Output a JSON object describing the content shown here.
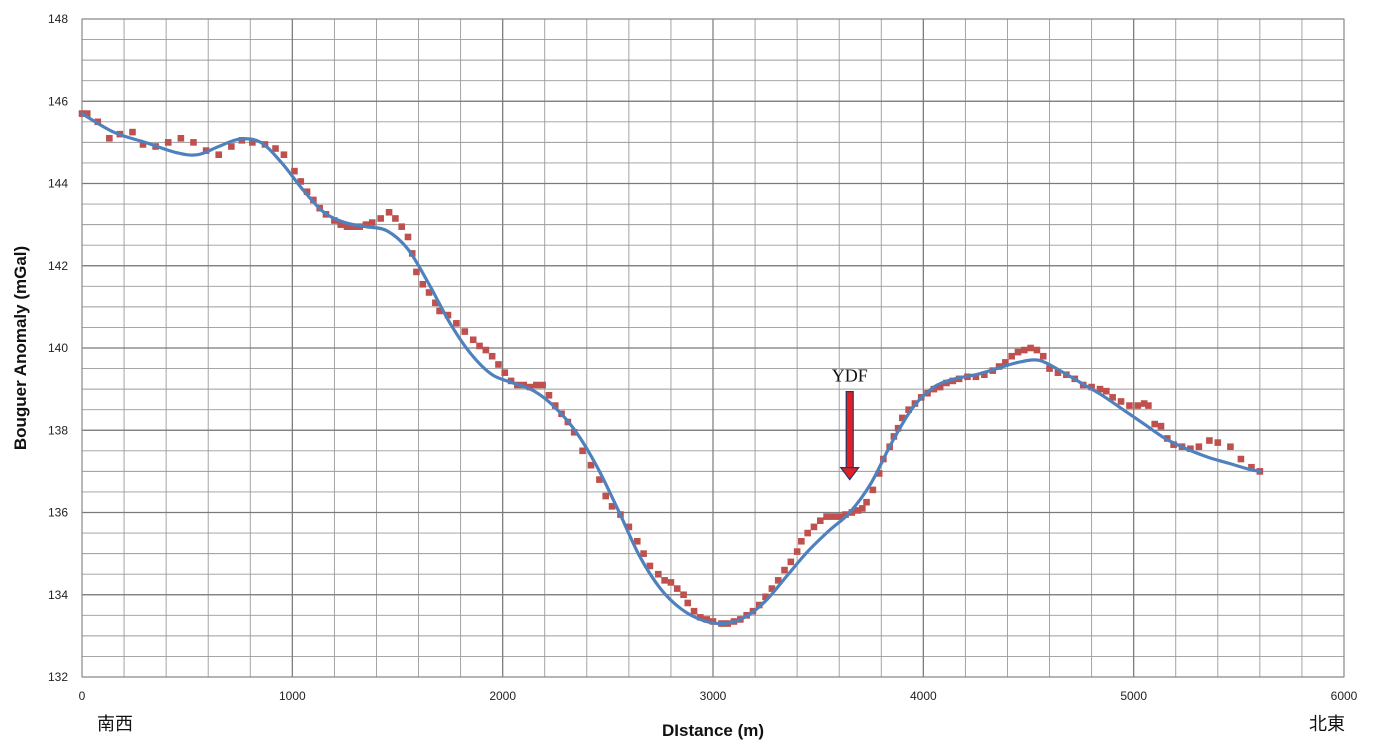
{
  "chart_data": {
    "type": "scatter",
    "xlabel": "DIstance (m)",
    "ylabel": "Bouguer Anomaly (mGal)",
    "xlim": [
      0,
      6000
    ],
    "ylim": [
      132,
      148
    ],
    "x_ticks": [
      0,
      1000,
      2000,
      3000,
      4000,
      5000,
      6000
    ],
    "y_ticks": [
      132,
      134,
      136,
      138,
      140,
      142,
      144,
      146,
      148
    ],
    "grid": true,
    "left_corner_label": "南西",
    "right_corner_label": "北東",
    "annotation": {
      "text": "YDF",
      "x": 3650,
      "y": 136.8
    },
    "series": [
      {
        "kind": "scatter",
        "color": "#c0504d",
        "points": [
          [
            0,
            145.7
          ],
          [
            25,
            145.7
          ],
          [
            75,
            145.5
          ],
          [
            130,
            145.1
          ],
          [
            180,
            145.2
          ],
          [
            240,
            145.25
          ],
          [
            290,
            144.95
          ],
          [
            350,
            144.9
          ],
          [
            410,
            145.0
          ],
          [
            470,
            145.1
          ],
          [
            530,
            145.0
          ],
          [
            590,
            144.8
          ],
          [
            650,
            144.7
          ],
          [
            710,
            144.9
          ],
          [
            760,
            145.05
          ],
          [
            810,
            145.0
          ],
          [
            870,
            144.95
          ],
          [
            920,
            144.85
          ],
          [
            960,
            144.7
          ],
          [
            1010,
            144.3
          ],
          [
            1040,
            144.05
          ],
          [
            1070,
            143.8
          ],
          [
            1100,
            143.6
          ],
          [
            1130,
            143.4
          ],
          [
            1160,
            143.25
          ],
          [
            1200,
            143.1
          ],
          [
            1230,
            143.0
          ],
          [
            1260,
            142.95
          ],
          [
            1290,
            142.95
          ],
          [
            1320,
            142.95
          ],
          [
            1350,
            143.0
          ],
          [
            1380,
            143.05
          ],
          [
            1420,
            143.15
          ],
          [
            1460,
            143.3
          ],
          [
            1490,
            143.15
          ],
          [
            1520,
            142.95
          ],
          [
            1550,
            142.7
          ],
          [
            1570,
            142.3
          ],
          [
            1590,
            141.85
          ],
          [
            1620,
            141.55
          ],
          [
            1650,
            141.35
          ],
          [
            1680,
            141.1
          ],
          [
            1700,
            140.9
          ],
          [
            1740,
            140.8
          ],
          [
            1780,
            140.6
          ],
          [
            1820,
            140.4
          ],
          [
            1860,
            140.2
          ],
          [
            1890,
            140.05
          ],
          [
            1920,
            139.95
          ],
          [
            1950,
            139.8
          ],
          [
            1980,
            139.6
          ],
          [
            2010,
            139.4
          ],
          [
            2040,
            139.2
          ],
          [
            2070,
            139.1
          ],
          [
            2100,
            139.1
          ],
          [
            2130,
            139.05
          ],
          [
            2160,
            139.1
          ],
          [
            2190,
            139.1
          ],
          [
            2220,
            138.85
          ],
          [
            2250,
            138.6
          ],
          [
            2280,
            138.4
          ],
          [
            2310,
            138.2
          ],
          [
            2340,
            137.95
          ],
          [
            2380,
            137.5
          ],
          [
            2420,
            137.15
          ],
          [
            2460,
            136.8
          ],
          [
            2490,
            136.4
          ],
          [
            2520,
            136.15
          ],
          [
            2560,
            135.95
          ],
          [
            2600,
            135.65
          ],
          [
            2640,
            135.3
          ],
          [
            2670,
            135.0
          ],
          [
            2700,
            134.7
          ],
          [
            2740,
            134.5
          ],
          [
            2770,
            134.35
          ],
          [
            2800,
            134.3
          ],
          [
            2830,
            134.15
          ],
          [
            2860,
            134.0
          ],
          [
            2880,
            133.8
          ],
          [
            2910,
            133.6
          ],
          [
            2940,
            133.45
          ],
          [
            2970,
            133.4
          ],
          [
            3000,
            133.35
          ],
          [
            3040,
            133.3
          ],
          [
            3070,
            133.3
          ],
          [
            3100,
            133.35
          ],
          [
            3130,
            133.4
          ],
          [
            3160,
            133.5
          ],
          [
            3190,
            133.6
          ],
          [
            3220,
            133.75
          ],
          [
            3250,
            133.95
          ],
          [
            3280,
            134.15
          ],
          [
            3310,
            134.35
          ],
          [
            3340,
            134.6
          ],
          [
            3370,
            134.8
          ],
          [
            3400,
            135.05
          ],
          [
            3420,
            135.3
          ],
          [
            3450,
            135.5
          ],
          [
            3480,
            135.65
          ],
          [
            3510,
            135.8
          ],
          [
            3540,
            135.9
          ],
          [
            3570,
            135.9
          ],
          [
            3600,
            135.9
          ],
          [
            3630,
            135.95
          ],
          [
            3660,
            136.0
          ],
          [
            3690,
            136.05
          ],
          [
            3710,
            136.1
          ],
          [
            3730,
            136.25
          ],
          [
            3760,
            136.55
          ],
          [
            3790,
            136.95
          ],
          [
            3810,
            137.3
          ],
          [
            3840,
            137.6
          ],
          [
            3860,
            137.85
          ],
          [
            3880,
            138.05
          ],
          [
            3900,
            138.3
          ],
          [
            3930,
            138.5
          ],
          [
            3960,
            138.65
          ],
          [
            3990,
            138.8
          ],
          [
            4020,
            138.9
          ],
          [
            4050,
            139.0
          ],
          [
            4080,
            139.05
          ],
          [
            4110,
            139.15
          ],
          [
            4140,
            139.2
          ],
          [
            4170,
            139.25
          ],
          [
            4210,
            139.3
          ],
          [
            4250,
            139.3
          ],
          [
            4290,
            139.35
          ],
          [
            4330,
            139.45
          ],
          [
            4360,
            139.55
          ],
          [
            4390,
            139.65
          ],
          [
            4420,
            139.8
          ],
          [
            4450,
            139.9
          ],
          [
            4480,
            139.95
          ],
          [
            4510,
            140.0
          ],
          [
            4540,
            139.95
          ],
          [
            4570,
            139.8
          ],
          [
            4600,
            139.5
          ],
          [
            4640,
            139.4
          ],
          [
            4680,
            139.35
          ],
          [
            4720,
            139.25
          ],
          [
            4760,
            139.1
          ],
          [
            4800,
            139.05
          ],
          [
            4840,
            139.0
          ],
          [
            4870,
            138.95
          ],
          [
            4900,
            138.8
          ],
          [
            4940,
            138.7
          ],
          [
            4980,
            138.6
          ],
          [
            5020,
            138.6
          ],
          [
            5050,
            138.65
          ],
          [
            5070,
            138.6
          ],
          [
            5100,
            138.15
          ],
          [
            5130,
            138.1
          ],
          [
            5160,
            137.8
          ],
          [
            5190,
            137.65
          ],
          [
            5230,
            137.6
          ],
          [
            5270,
            137.55
          ],
          [
            5310,
            137.6
          ],
          [
            5360,
            137.75
          ],
          [
            5400,
            137.7
          ],
          [
            5460,
            137.6
          ],
          [
            5510,
            137.3
          ],
          [
            5560,
            137.1
          ],
          [
            5600,
            137.0
          ]
        ]
      },
      {
        "kind": "line",
        "color": "#4f81bd",
        "points": [
          [
            0,
            145.7
          ],
          [
            150,
            145.25
          ],
          [
            300,
            145.0
          ],
          [
            450,
            144.75
          ],
          [
            550,
            144.7
          ],
          [
            650,
            144.9
          ],
          [
            750,
            145.08
          ],
          [
            850,
            145.0
          ],
          [
            950,
            144.5
          ],
          [
            1050,
            143.85
          ],
          [
            1150,
            143.3
          ],
          [
            1250,
            143.05
          ],
          [
            1350,
            142.95
          ],
          [
            1450,
            142.85
          ],
          [
            1550,
            142.4
          ],
          [
            1650,
            141.55
          ],
          [
            1750,
            140.6
          ],
          [
            1850,
            139.85
          ],
          [
            1950,
            139.35
          ],
          [
            2050,
            139.15
          ],
          [
            2150,
            138.95
          ],
          [
            2250,
            138.55
          ],
          [
            2350,
            137.95
          ],
          [
            2450,
            137.1
          ],
          [
            2550,
            136.05
          ],
          [
            2650,
            134.95
          ],
          [
            2750,
            134.15
          ],
          [
            2850,
            133.65
          ],
          [
            2950,
            133.38
          ],
          [
            3050,
            133.3
          ],
          [
            3150,
            133.45
          ],
          [
            3250,
            133.85
          ],
          [
            3350,
            134.45
          ],
          [
            3450,
            135.05
          ],
          [
            3550,
            135.55
          ],
          [
            3650,
            136.0
          ],
          [
            3750,
            136.7
          ],
          [
            3850,
            137.7
          ],
          [
            3950,
            138.55
          ],
          [
            4050,
            139.05
          ],
          [
            4150,
            139.25
          ],
          [
            4250,
            139.35
          ],
          [
            4350,
            139.5
          ],
          [
            4450,
            139.65
          ],
          [
            4550,
            139.7
          ],
          [
            4650,
            139.45
          ],
          [
            4750,
            139.15
          ],
          [
            4850,
            138.85
          ],
          [
            4950,
            138.5
          ],
          [
            5050,
            138.15
          ],
          [
            5150,
            137.8
          ],
          [
            5250,
            137.55
          ],
          [
            5350,
            137.35
          ],
          [
            5450,
            137.2
          ],
          [
            5550,
            137.05
          ],
          [
            5600,
            137.0
          ]
        ]
      }
    ]
  }
}
